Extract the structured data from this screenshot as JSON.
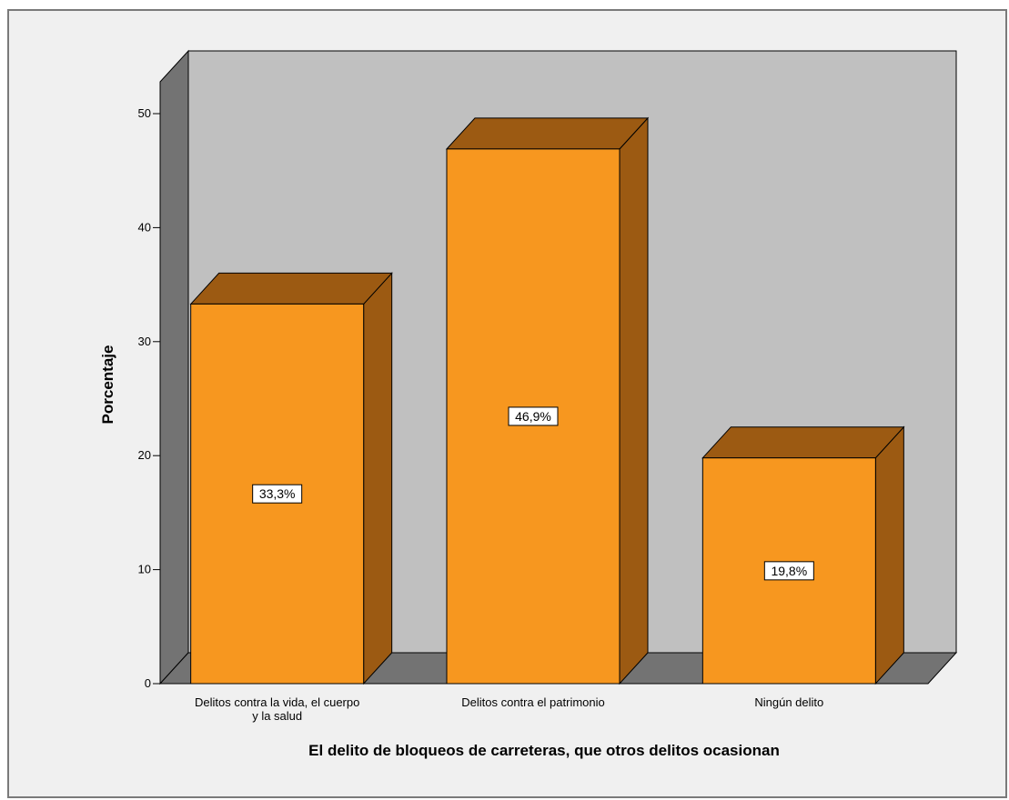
{
  "chart_data": {
    "type": "bar",
    "style": "3d",
    "categories": [
      [
        "Delitos contra la vida, el cuerpo",
        "y la salud"
      ],
      [
        "Delitos contra el patrimonio"
      ],
      [
        "Ningún delito"
      ]
    ],
    "values": [
      33.3,
      46.9,
      19.8
    ],
    "data_labels": [
      "33,3%",
      "46,9%",
      "19,8%"
    ],
    "xlabel": "El delito de bloqueos de carreteras, que otros delitos ocasionan",
    "ylabel": "Porcentaje",
    "ylim": [
      0,
      50
    ],
    "yticks": [
      0,
      10,
      20,
      30,
      40,
      50
    ],
    "grid": false,
    "legend": "none",
    "colors": {
      "bar_front": "#f7971f",
      "bar_top": "#9c5a12",
      "bar_side": "#9c5a12",
      "back_wall": "#c0c0c0",
      "side_wall": "#737373",
      "floor": "#737373",
      "background": "#f0f0f0",
      "frame_border": "#7a7a7a"
    }
  }
}
